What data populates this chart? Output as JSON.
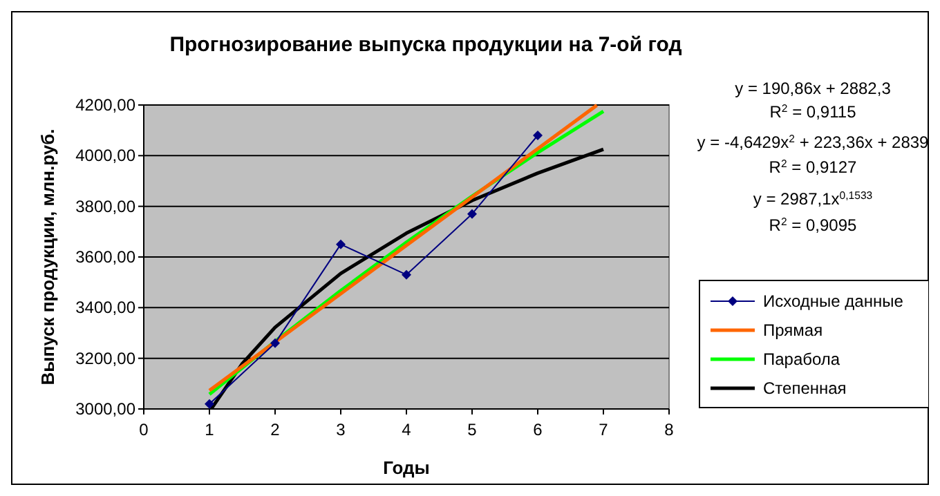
{
  "chart_data": {
    "type": "line",
    "title": "Прогнозирование выпуска продукции на 7-ой год",
    "xlabel": "Годы",
    "ylabel": "Выпуск продукции, млн.руб.",
    "xlim": [
      0,
      8
    ],
    "xticks": [
      0,
      1,
      2,
      3,
      4,
      5,
      6,
      7,
      8
    ],
    "ylim": [
      3000,
      4200
    ],
    "yticks": [
      {
        "value": 3000,
        "label": "3000,00"
      },
      {
        "value": 3200,
        "label": "3200,00"
      },
      {
        "value": 3400,
        "label": "3400,00"
      },
      {
        "value": 3600,
        "label": "3600,00"
      },
      {
        "value": 3800,
        "label": "3800,00"
      },
      {
        "value": 4000,
        "label": "4000,00"
      },
      {
        "value": 4200,
        "label": "4200,00"
      }
    ],
    "grid": "y",
    "legend": "right",
    "series": [
      {
        "name": "Исходные данные",
        "color": "#000080",
        "marker": "diamond",
        "x": [
          1,
          2,
          3,
          4,
          5,
          6
        ],
        "values": [
          3020,
          3260,
          3650,
          3530,
          3770,
          4080
        ]
      },
      {
        "name": "Прямая",
        "color": "#ff6600",
        "marker": "none",
        "x": [
          1,
          6.9
        ],
        "values": [
          3073,
          4199
        ]
      },
      {
        "name": "Парабола",
        "color": "#00ff00",
        "marker": "none",
        "x": [
          1,
          2,
          3,
          4,
          5,
          6,
          7
        ],
        "values": [
          3058,
          3267,
          3467,
          3658,
          3840,
          4012,
          4175
        ]
      },
      {
        "name": "Степенная",
        "color": "#000000",
        "marker": "none",
        "x": [
          1.03,
          1.5,
          2,
          3,
          4,
          5,
          6,
          7
        ],
        "values": [
          3001,
          3179,
          3322,
          3535,
          3694,
          3823,
          3931,
          4025
        ]
      }
    ],
    "annotations": [
      "y = 190,86x + 2882,3",
      "R$^{2}$ = 0,9115",
      "y = -4,6429x$^{2}$ + 223,36x + 2839",
      "R$^{2}$ = 0,9127",
      "y = 2987,1x$^{0,1533}$",
      "R$^{2}$ = 0,9095"
    ]
  }
}
